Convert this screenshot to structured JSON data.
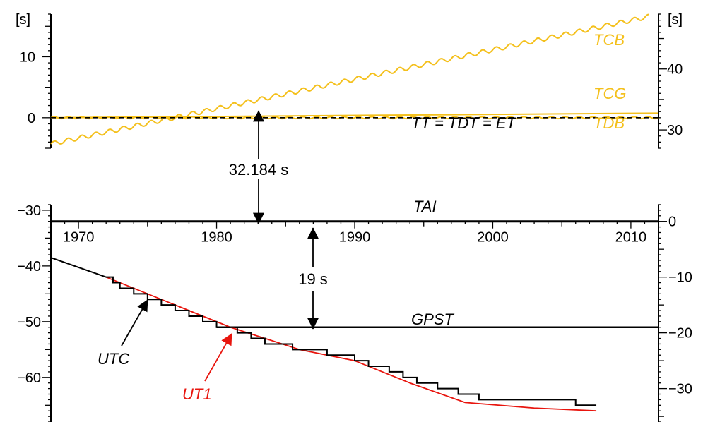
{
  "chart_data": {
    "type": "line",
    "colors": {
      "yellow": "#f4c01c",
      "red": "#e8150e",
      "black": "#000000"
    },
    "x_axis": {
      "range": [
        1968,
        2012
      ],
      "ticks": [
        1970,
        1980,
        1990,
        2000,
        2010
      ]
    },
    "top_panel": {
      "left_unit": "[s]",
      "right_unit": "[s]",
      "left_ylim": [
        -5,
        17
      ],
      "left_ticks": [
        0,
        10
      ],
      "right_ylim": [
        27,
        49
      ],
      "right_ticks": [
        30,
        40
      ],
      "series": [
        {
          "name": "TCB",
          "x": [
            1968,
            2011.3
          ],
          "y": [
            -4.3,
            16.6
          ],
          "wobble_amplitude": 0.35,
          "color": "#f4c01c"
        },
        {
          "name": "TCG",
          "x": [
            1968,
            2012
          ],
          "y": [
            0,
            0.75
          ],
          "color": "#f4c01c"
        },
        {
          "name": "TDB",
          "x": [
            1968,
            2012
          ],
          "y": [
            0,
            0
          ],
          "wobble_amplitude": 0.15,
          "color": "#f4c01c"
        },
        {
          "name": "TT = TDT = ET",
          "x": [
            1968,
            2012
          ],
          "y": [
            0,
            0
          ],
          "color": "#000000",
          "dashed": true
        }
      ]
    },
    "bottom_panel": {
      "left_ylim": [
        -68,
        -29
      ],
      "left_ticks": [
        -30,
        -40,
        -50,
        -60
      ],
      "right_ylim": [
        -36,
        3
      ],
      "right_ticks": [
        0,
        -10,
        -20,
        -30
      ],
      "TAI": {
        "label": "TAI",
        "y": -32
      },
      "GPST": {
        "label": "GPST",
        "y": -51,
        "x_start": 1980.0
      },
      "UTC_leap_years": [
        1972.0,
        1972.5,
        1973.0,
        1974.0,
        1975.0,
        1976.0,
        1977.0,
        1978.0,
        1979.0,
        1980.0,
        1981.5,
        1982.5,
        1983.5,
        1985.5,
        1988.0,
        1990.0,
        1991.0,
        1992.5,
        1993.5,
        1994.5,
        1996.0,
        1997.5,
        1999.0,
        2006.0
      ],
      "UTC_initial": {
        "x": [
          1968,
          1972.0
        ],
        "y": [
          -38.5,
          -42
        ]
      },
      "UTC_end_x": 2007.5,
      "UT1": {
        "x": [
          1972,
          1977,
          1981,
          1986,
          1990,
          1994,
          1998,
          2003,
          2007.5
        ],
        "y": [
          -42,
          -47,
          -51,
          -55,
          -57,
          -61,
          -64.5,
          -65.5,
          -66
        ]
      }
    },
    "annotations": [
      {
        "text": "32.184 s"
      },
      {
        "text": "19 s"
      },
      {
        "text": "UTC"
      },
      {
        "text": "UT1"
      }
    ]
  },
  "labels": {
    "top_left_unit": "[s]",
    "top_right_unit": "[s]",
    "tcb": "TCB",
    "tcg": "TCG",
    "tdb": "TDB",
    "tt": "TT = TDT = ET",
    "tai": "TAI",
    "gpst": "GPST",
    "offset_tt": "32.184 s",
    "offset_gps": "19 s",
    "utc": "UTC",
    "ut1": "UT1"
  }
}
